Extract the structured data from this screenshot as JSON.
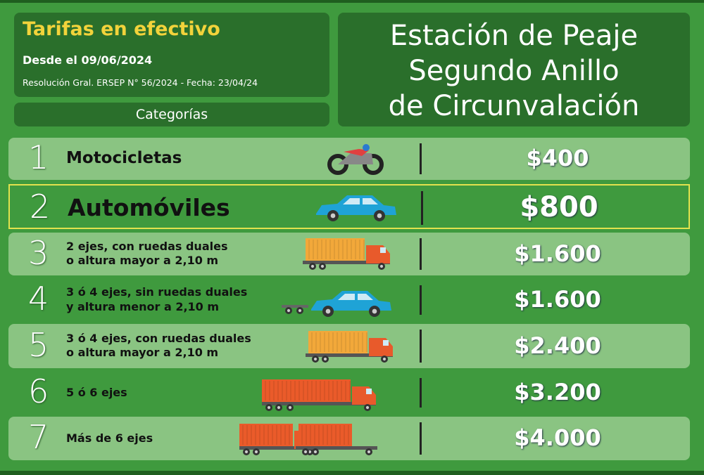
{
  "header": {
    "title": "Tarifas en efectivo",
    "since": "Desde el 09/06/2024",
    "resolution": "Resolución Gral. ERSEP N° 56/2024 - Fecha:  23/04/24",
    "categories_label": "Categorías",
    "station": [
      "Estación de Peaje",
      "Segundo Anillo",
      "de Circunvalación"
    ]
  },
  "rows": [
    {
      "number": "1",
      "description": [
        "Motocicletas"
      ],
      "price": "$400"
    },
    {
      "number": "2",
      "description": [
        "Automóviles"
      ],
      "price": "$800"
    },
    {
      "number": "3",
      "description": [
        "2 ejes, con ruedas duales",
        "o altura mayor a 2,10 m"
      ],
      "price": "$1.600"
    },
    {
      "number": "4",
      "description": [
        "3 ó 4 ejes, sin ruedas duales",
        "y altura menor a 2,10 m"
      ],
      "price": "$1.600"
    },
    {
      "number": "5",
      "description": [
        "3 ó 4 ejes, con ruedas duales",
        "o altura mayor a 2,10 m"
      ],
      "price": "$2.400"
    },
    {
      "number": "6",
      "description": [
        "5 ó 6 ejes"
      ],
      "price": "$3.200"
    },
    {
      "number": "7",
      "description": [
        "Más de 6 ejes"
      ],
      "price": "$4.000"
    }
  ]
}
